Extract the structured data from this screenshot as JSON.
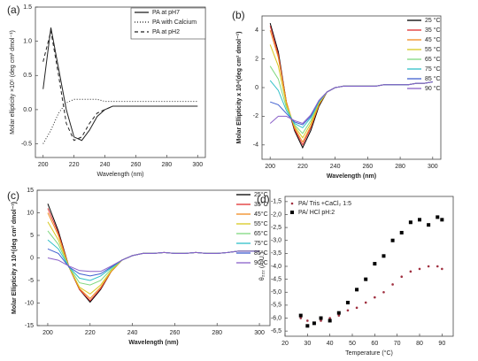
{
  "chart_data": [
    {
      "type": "line",
      "label": "(a)",
      "x_label": "Wavelength (nm)",
      "y_label": "Molar ellipticity ×10⁵ (deg cm² dmol⁻¹)",
      "xlim": [
        195,
        305
      ],
      "xticks": [
        200,
        220,
        240,
        260,
        280,
        300
      ],
      "ylim": [
        -0.7,
        1.5
      ],
      "yticks": [
        -0.5,
        {
          "value": 0,
          "label": "0.0"
        },
        0.5,
        {
          "value": 1,
          "label": "1.0"
        },
        1.5
      ],
      "legend": "upper right",
      "legend_frame": true,
      "bold_labels": false,
      "x": [
        200,
        205,
        210,
        215,
        220,
        225,
        230,
        235,
        240,
        245,
        250,
        255,
        260,
        265,
        270,
        275,
        280,
        285,
        290,
        295,
        300
      ],
      "series": [
        {
          "name": "PA at pH7",
          "color": "#222222",
          "style": "solid",
          "values": [
            0.3,
            1.2,
            0.6,
            0.0,
            -0.4,
            -0.45,
            -0.3,
            -0.1,
            0.0,
            0.05,
            0.05,
            0.05,
            0.05,
            0.05,
            0.05,
            0.05,
            0.05,
            0.05,
            0.05,
            0.05,
            0.05
          ]
        },
        {
          "name": "PA with Calcium",
          "color": "#222222",
          "style": "dotted",
          "values": [
            -0.5,
            -0.3,
            -0.05,
            0.1,
            0.15,
            0.15,
            0.15,
            0.15,
            0.12,
            0.12,
            0.12,
            0.12,
            0.12,
            0.12,
            0.12,
            0.12,
            0.12,
            0.12,
            0.12,
            0.12,
            0.12
          ]
        },
        {
          "name": "PA at pH2",
          "color": "#222222",
          "style": "dashed",
          "values": [
            0.7,
            1.15,
            0.5,
            -0.2,
            -0.45,
            -0.4,
            -0.2,
            -0.05,
            0.0,
            0.05,
            0.05,
            0.05,
            0.05,
            0.05,
            0.05,
            0.05,
            0.05,
            0.05,
            0.05,
            0.05,
            0.05
          ]
        }
      ]
    },
    {
      "type": "line",
      "label": "(b)",
      "x_label": "Wavelength (nm)",
      "y_label": "Molar Ellipticity x 10⁴(deg cm² dmol⁻¹)",
      "xlim": [
        195,
        305
      ],
      "xticks": [
        200,
        220,
        240,
        260,
        280,
        300
      ],
      "ylim": [
        -5,
        5
      ],
      "yticks": [
        -4,
        -2,
        0,
        2,
        4
      ],
      "legend": "right",
      "legend_frame": false,
      "bold_labels": true,
      "x": [
        200,
        205,
        210,
        215,
        220,
        225,
        230,
        235,
        240,
        245,
        250,
        255,
        260,
        265,
        270,
        275,
        280,
        285,
        290,
        295,
        300
      ],
      "series": [
        {
          "name": "25 °C",
          "color": "#000000",
          "style": "solid",
          "values": [
            4.5,
            2.5,
            -1.0,
            -3.0,
            -4.2,
            -3.0,
            -1.3,
            -0.3,
            0.0,
            0.1,
            0.1,
            0.1,
            0.1,
            0.1,
            0.2,
            0.2,
            0.2,
            0.2,
            0.3,
            0.3,
            0.4
          ]
        },
        {
          "name": "35 °C",
          "color": "#e03030",
          "style": "solid",
          "values": [
            4.3,
            2.3,
            -1.0,
            -2.9,
            -4.0,
            -2.8,
            -1.2,
            -0.3,
            0.0,
            0.1,
            0.1,
            0.1,
            0.1,
            0.1,
            0.2,
            0.2,
            0.2,
            0.2,
            0.3,
            0.3,
            0.4
          ]
        },
        {
          "name": "45 °C",
          "color": "#f08c20",
          "style": "solid",
          "values": [
            4.0,
            2.1,
            -1.0,
            -2.8,
            -3.8,
            -2.7,
            -1.2,
            -0.3,
            0.0,
            0.1,
            0.1,
            0.1,
            0.1,
            0.1,
            0.2,
            0.2,
            0.2,
            0.2,
            0.3,
            0.3,
            0.4
          ]
        },
        {
          "name": "55 °C",
          "color": "#d8c820",
          "style": "solid",
          "values": [
            3.0,
            1.5,
            -1.2,
            -2.7,
            -3.5,
            -2.5,
            -1.1,
            -0.3,
            0.0,
            0.1,
            0.1,
            0.1,
            0.1,
            0.1,
            0.2,
            0.2,
            0.2,
            0.2,
            0.3,
            0.3,
            0.4
          ]
        },
        {
          "name": "65 °C",
          "color": "#80d880",
          "style": "solid",
          "values": [
            1.5,
            0.6,
            -1.4,
            -2.6,
            -3.2,
            -2.3,
            -1.0,
            -0.3,
            0.0,
            0.1,
            0.1,
            0.1,
            0.1,
            0.1,
            0.2,
            0.2,
            0.2,
            0.2,
            0.3,
            0.3,
            0.4
          ]
        },
        {
          "name": "75 °C",
          "color": "#30c0c8",
          "style": "solid",
          "values": [
            0.5,
            -0.2,
            -1.6,
            -2.5,
            -2.8,
            -2.1,
            -1.0,
            -0.3,
            0.0,
            0.1,
            0.1,
            0.1,
            0.1,
            0.1,
            0.2,
            0.2,
            0.2,
            0.2,
            0.3,
            0.3,
            0.4
          ]
        },
        {
          "name": "85 °C",
          "color": "#4060d0",
          "style": "solid",
          "values": [
            -1.0,
            -1.2,
            -1.8,
            -2.4,
            -2.6,
            -2.0,
            -0.9,
            -0.3,
            0.0,
            0.1,
            0.1,
            0.1,
            0.1,
            0.1,
            0.2,
            0.2,
            0.2,
            0.2,
            0.3,
            0.3,
            0.4
          ]
        },
        {
          "name": "90 °C",
          "color": "#8a60c8",
          "style": "solid",
          "values": [
            -2.5,
            -2.0,
            -2.0,
            -2.3,
            -2.5,
            -1.9,
            -0.9,
            -0.3,
            0.0,
            0.1,
            0.1,
            0.1,
            0.1,
            0.1,
            0.2,
            0.2,
            0.2,
            0.2,
            0.3,
            0.3,
            0.4
          ]
        }
      ]
    },
    {
      "type": "line",
      "label": "(c)",
      "x_label": "Wavelength (nm)",
      "y_label": "Molar Ellipticity x 10⁴(deg cm² dmol⁻¹)",
      "xlim": [
        195,
        305
      ],
      "xticks": [
        200,
        220,
        240,
        260,
        280,
        300
      ],
      "ylim": [
        -15,
        15
      ],
      "yticks": [
        -15,
        -10,
        -5,
        0,
        5,
        10,
        15
      ],
      "legend": "right",
      "legend_frame": false,
      "bold_labels": true,
      "x": [
        200,
        205,
        210,
        215,
        220,
        225,
        230,
        235,
        240,
        245,
        250,
        255,
        260,
        265,
        270,
        275,
        280,
        285,
        290,
        295,
        300
      ],
      "series": [
        {
          "name": "25°C",
          "color": "#000000",
          "style": "solid",
          "values": [
            12,
            6,
            -2,
            -7,
            -9.8,
            -7,
            -3,
            -0.5,
            0.5,
            1,
            1,
            1.2,
            1,
            1,
            1.2,
            1,
            1,
            1.2,
            1.5,
            1.5,
            1.5
          ]
        },
        {
          "name": "35°C",
          "color": "#e03030",
          "style": "solid",
          "values": [
            11,
            5.5,
            -2,
            -7,
            -9.5,
            -6.8,
            -3,
            -0.5,
            0.5,
            1,
            1,
            1.2,
            1,
            1,
            1.2,
            1,
            1,
            1.2,
            1.5,
            1.5,
            1.5
          ]
        },
        {
          "name": "45°C",
          "color": "#f08c20",
          "style": "solid",
          "values": [
            10,
            5,
            -2,
            -6.8,
            -9,
            -6.5,
            -3,
            -0.5,
            0.5,
            1,
            1,
            1.2,
            1,
            1,
            1.2,
            1,
            1,
            1.2,
            1.5,
            1.5,
            1.5
          ]
        },
        {
          "name": "55°C",
          "color": "#d8c820",
          "style": "solid",
          "values": [
            8,
            4,
            -2,
            -6.5,
            -8,
            -6,
            -2.8,
            -0.5,
            0.5,
            1,
            1,
            1.2,
            1,
            1,
            1.2,
            1,
            1,
            1.2,
            1.5,
            1.5,
            1.5
          ]
        },
        {
          "name": "65°C",
          "color": "#80d880",
          "style": "solid",
          "values": [
            6,
            3,
            -2,
            -5.5,
            -6,
            -5,
            -2.5,
            -0.5,
            0.5,
            1,
            1,
            1.2,
            1,
            1,
            1.2,
            1,
            1,
            1.2,
            1.5,
            1.5,
            1.5
          ]
        },
        {
          "name": "75°C",
          "color": "#30c0c8",
          "style": "solid",
          "values": [
            4,
            2,
            -2,
            -4.5,
            -5,
            -4,
            -2.2,
            -0.5,
            0.5,
            1,
            1,
            1.2,
            1,
            1,
            1.2,
            1,
            1,
            1.2,
            1.5,
            1.5,
            1.5
          ]
        },
        {
          "name": "85°C",
          "color": "#4060d0",
          "style": "solid",
          "values": [
            2,
            1,
            -2,
            -3.5,
            -4,
            -3.5,
            -2,
            -0.5,
            0.5,
            1,
            1,
            1.2,
            1,
            1,
            1.2,
            1,
            1,
            1.2,
            1.5,
            1.5,
            1.5
          ]
        },
        {
          "name": "90°C",
          "color": "#8a60c8",
          "style": "solid",
          "values": [
            0,
            -0.5,
            -1.8,
            -2.8,
            -3,
            -3,
            -1.8,
            -0.5,
            0.5,
            1,
            1,
            1.2,
            1,
            1,
            1.2,
            1,
            1,
            1.2,
            1.5,
            1.5,
            1.5
          ]
        }
      ]
    },
    {
      "type": "scatter",
      "label": "(d)",
      "x_label": "Temperature (°C)",
      "y_label": "θ₂₂₂ (A.U.)",
      "xlim": [
        20,
        95
      ],
      "xticks": [
        20,
        30,
        40,
        50,
        60,
        70,
        80,
        90
      ],
      "ylim": [
        -6.7,
        -1.3
      ],
      "yticks": [
        {
          "value": -6.5,
          "label": "-6,5"
        },
        {
          "value": -6,
          "label": "-6,0"
        },
        {
          "value": -5.5,
          "label": "-5,5"
        },
        {
          "value": -5,
          "label": "-5,0"
        },
        {
          "value": -4.5,
          "label": "-4,5"
        },
        {
          "value": -4,
          "label": "-4,0"
        },
        {
          "value": -3.5,
          "label": "-3,5"
        },
        {
          "value": -3,
          "label": "-3,0"
        },
        {
          "value": -2.5,
          "label": "-2,5"
        },
        {
          "value": -2,
          "label": "-2,0"
        },
        {
          "value": -1.5,
          "label": "-1,5"
        }
      ],
      "legend": "upper left",
      "legend_frame": false,
      "bold_labels": false,
      "series": [
        {
          "name": "PA/ Tris +CaCl₂ 1:5",
          "color": "#a03040",
          "marker": "dot",
          "x": [
            27,
            30,
            33,
            36,
            40,
            44,
            48,
            52,
            56,
            60,
            64,
            68,
            72,
            76,
            80,
            84,
            88,
            90
          ],
          "values": [
            -6.0,
            -6.1,
            -6.2,
            -6.1,
            -6.0,
            -5.9,
            -5.7,
            -5.6,
            -5.4,
            -5.2,
            -5.0,
            -4.7,
            -4.4,
            -4.2,
            -4.1,
            -4.0,
            -4.0,
            -4.1
          ]
        },
        {
          "name": "PA/ HCl pH:2",
          "color": "#000000",
          "marker": "square",
          "x": [
            27,
            30,
            33,
            36,
            40,
            44,
            48,
            52,
            56,
            60,
            64,
            68,
            72,
            76,
            80,
            84,
            88,
            90
          ],
          "values": [
            -5.9,
            -6.3,
            -6.2,
            -6.0,
            -6.1,
            -5.8,
            -5.4,
            -4.9,
            -4.5,
            -3.9,
            -3.6,
            -3.0,
            -2.7,
            -2.3,
            -2.2,
            -2.4,
            -2.1,
            -2.2
          ]
        }
      ]
    }
  ]
}
